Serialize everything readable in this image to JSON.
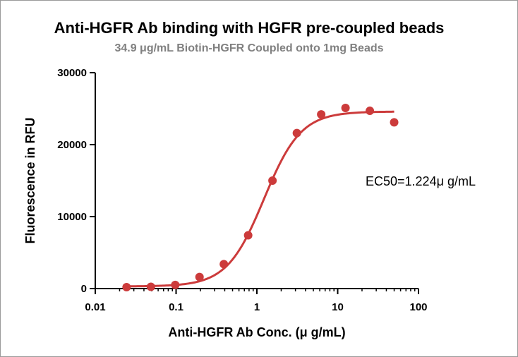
{
  "chart_data": {
    "type": "scatter",
    "title": "Anti-HGFR Ab binding with HGFR pre-coupled beads",
    "subtitle": "34.9 μg/mL Biotin-HGFR Coupled onto 1mg Beads",
    "xlabel": "Anti-HGFR Ab Conc. (μ g/mL)",
    "ylabel": "Fluorescence in RFU",
    "xscale": "log",
    "xlim": [
      0.01,
      100
    ],
    "ylim": [
      0,
      30000
    ],
    "x_ticks": [
      "0.01",
      "0.1",
      "1",
      "10",
      "100"
    ],
    "x_tick_values": [
      0.01,
      0.1,
      1,
      10,
      100
    ],
    "y_ticks": [
      "0",
      "10000",
      "20000",
      "30000"
    ],
    "y_tick_values": [
      0,
      10000,
      20000,
      30000
    ],
    "grid": false,
    "series": [
      {
        "x": [
          0.0244,
          0.0488,
          0.0977,
          0.195,
          0.39,
          0.78,
          1.56,
          3.125,
          6.25,
          12.5,
          25,
          50
        ],
        "y": [
          200,
          250,
          500,
          1600,
          3400,
          7400,
          15000,
          21600,
          24200,
          25100,
          24700,
          23100
        ]
      }
    ],
    "fit": {
      "bottom": 300,
      "top": 24600,
      "ec50": 1.224,
      "hill": 1.9,
      "x_range": [
        0.0244,
        50
      ]
    },
    "annotation": "EC50=1.224μ g/mL",
    "colors": {
      "series": "#cc3b3b",
      "axis": "#000000"
    }
  }
}
